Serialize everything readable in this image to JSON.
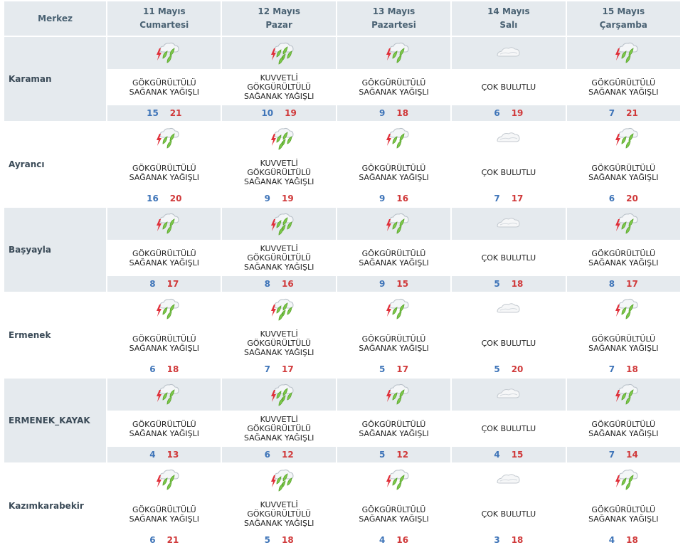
{
  "header": {
    "center_label": "Merkez",
    "days": [
      {
        "date": "11 Mayıs",
        "weekday": "Cumartesi"
      },
      {
        "date": "12 Mayıs",
        "weekday": "Pazar"
      },
      {
        "date": "13 Mayıs",
        "weekday": "Pazartesi"
      },
      {
        "date": "14 Mayıs",
        "weekday": "Salı"
      },
      {
        "date": "15 Mayıs",
        "weekday": "Çarşamba"
      }
    ]
  },
  "icons": {
    "storm": "thunderstorm-shower-icon",
    "heavy_storm": "heavy-thunderstorm-shower-icon",
    "cloudy": "overcast-cloud-icon"
  },
  "colors": {
    "min_temp": "#3e74b8",
    "max_temp": "#d0393a",
    "row_band": "#e5eaee",
    "header_text": "#4a6273"
  },
  "rows": [
    {
      "city": "Karaman",
      "forecasts": [
        {
          "icon": "storm",
          "desc1": "GÖKGÜRÜLTÜLÜ",
          "desc2": "SAĞANAK YAĞIŞLI",
          "desc3": "",
          "min": "15",
          "max": "21"
        },
        {
          "icon": "heavy_storm",
          "desc1": "KUVVETLİ",
          "desc2": "GÖKGÜRÜLTÜLÜ",
          "desc3": "SAĞANAK YAĞIŞLI",
          "min": "10",
          "max": "19"
        },
        {
          "icon": "storm",
          "desc1": "GÖKGÜRÜLTÜLÜ",
          "desc2": "SAĞANAK YAĞIŞLI",
          "desc3": "",
          "min": "9",
          "max": "18"
        },
        {
          "icon": "cloudy",
          "desc1": "ÇOK BULUTLU",
          "desc2": "",
          "desc3": "",
          "min": "6",
          "max": "19"
        },
        {
          "icon": "storm",
          "desc1": "GÖKGÜRÜLTÜLÜ",
          "desc2": "SAĞANAK YAĞIŞLI",
          "desc3": "",
          "min": "7",
          "max": "21"
        }
      ]
    },
    {
      "city": "Ayrancı",
      "forecasts": [
        {
          "icon": "storm",
          "desc1": "GÖKGÜRÜLTÜLÜ",
          "desc2": "SAĞANAK YAĞIŞLI",
          "desc3": "",
          "min": "16",
          "max": "20"
        },
        {
          "icon": "heavy_storm",
          "desc1": "KUVVETLİ",
          "desc2": "GÖKGÜRÜLTÜLÜ",
          "desc3": "SAĞANAK YAĞIŞLI",
          "min": "9",
          "max": "19"
        },
        {
          "icon": "storm",
          "desc1": "GÖKGÜRÜLTÜLÜ",
          "desc2": "SAĞANAK YAĞIŞLI",
          "desc3": "",
          "min": "9",
          "max": "16"
        },
        {
          "icon": "cloudy",
          "desc1": "ÇOK BULUTLU",
          "desc2": "",
          "desc3": "",
          "min": "7",
          "max": "17"
        },
        {
          "icon": "storm",
          "desc1": "GÖKGÜRÜLTÜLÜ",
          "desc2": "SAĞANAK YAĞIŞLI",
          "desc3": "",
          "min": "6",
          "max": "20"
        }
      ]
    },
    {
      "city": "Başyayla",
      "forecasts": [
        {
          "icon": "storm",
          "desc1": "GÖKGÜRÜLTÜLÜ",
          "desc2": "SAĞANAK YAĞIŞLI",
          "desc3": "",
          "min": "8",
          "max": "17"
        },
        {
          "icon": "heavy_storm",
          "desc1": "KUVVETLİ",
          "desc2": "GÖKGÜRÜLTÜLÜ",
          "desc3": "SAĞANAK YAĞIŞLI",
          "min": "8",
          "max": "16"
        },
        {
          "icon": "storm",
          "desc1": "GÖKGÜRÜLTÜLÜ",
          "desc2": "SAĞANAK YAĞIŞLI",
          "desc3": "",
          "min": "9",
          "max": "15"
        },
        {
          "icon": "cloudy",
          "desc1": "ÇOK BULUTLU",
          "desc2": "",
          "desc3": "",
          "min": "5",
          "max": "18"
        },
        {
          "icon": "storm",
          "desc1": "GÖKGÜRÜLTÜLÜ",
          "desc2": "SAĞANAK YAĞIŞLI",
          "desc3": "",
          "min": "8",
          "max": "17"
        }
      ]
    },
    {
      "city": "Ermenek",
      "forecasts": [
        {
          "icon": "storm",
          "desc1": "GÖKGÜRÜLTÜLÜ",
          "desc2": "SAĞANAK YAĞIŞLI",
          "desc3": "",
          "min": "6",
          "max": "18"
        },
        {
          "icon": "heavy_storm",
          "desc1": "KUVVETLİ",
          "desc2": "GÖKGÜRÜLTÜLÜ",
          "desc3": "SAĞANAK YAĞIŞLI",
          "min": "7",
          "max": "17"
        },
        {
          "icon": "storm",
          "desc1": "GÖKGÜRÜLTÜLÜ",
          "desc2": "SAĞANAK YAĞIŞLI",
          "desc3": "",
          "min": "5",
          "max": "17"
        },
        {
          "icon": "cloudy",
          "desc1": "ÇOK BULUTLU",
          "desc2": "",
          "desc3": "",
          "min": "5",
          "max": "20"
        },
        {
          "icon": "storm",
          "desc1": "GÖKGÜRÜLTÜLÜ",
          "desc2": "SAĞANAK YAĞIŞLI",
          "desc3": "",
          "min": "7",
          "max": "18"
        }
      ]
    },
    {
      "city": "ERMENEK_KAYAK",
      "forecasts": [
        {
          "icon": "storm",
          "desc1": "GÖKGÜRÜLTÜLÜ",
          "desc2": "SAĞANAK YAĞIŞLI",
          "desc3": "",
          "min": "4",
          "max": "13"
        },
        {
          "icon": "heavy_storm",
          "desc1": "KUVVETLİ",
          "desc2": "GÖKGÜRÜLTÜLÜ",
          "desc3": "SAĞANAK YAĞIŞLI",
          "min": "6",
          "max": "12"
        },
        {
          "icon": "storm",
          "desc1": "GÖKGÜRÜLTÜLÜ",
          "desc2": "SAĞANAK YAĞIŞLI",
          "desc3": "",
          "min": "5",
          "max": "12"
        },
        {
          "icon": "cloudy",
          "desc1": "ÇOK BULUTLU",
          "desc2": "",
          "desc3": "",
          "min": "4",
          "max": "15"
        },
        {
          "icon": "storm",
          "desc1": "GÖKGÜRÜLTÜLÜ",
          "desc2": "SAĞANAK YAĞIŞLI",
          "desc3": "",
          "min": "7",
          "max": "14"
        }
      ]
    },
    {
      "city": "Kazımkarabekir",
      "forecasts": [
        {
          "icon": "storm",
          "desc1": "GÖKGÜRÜLTÜLÜ",
          "desc2": "SAĞANAK YAĞIŞLI",
          "desc3": "",
          "min": "6",
          "max": "21"
        },
        {
          "icon": "heavy_storm",
          "desc1": "KUVVETLİ",
          "desc2": "GÖKGÜRÜLTÜLÜ",
          "desc3": "SAĞANAK YAĞIŞLI",
          "min": "5",
          "max": "18"
        },
        {
          "icon": "storm",
          "desc1": "GÖKGÜRÜLTÜLÜ",
          "desc2": "SAĞANAK YAĞIŞLI",
          "desc3": "",
          "min": "4",
          "max": "16"
        },
        {
          "icon": "cloudy",
          "desc1": "ÇOK BULUTLU",
          "desc2": "",
          "desc3": "",
          "min": "3",
          "max": "18"
        },
        {
          "icon": "storm",
          "desc1": "GÖKGÜRÜLTÜLÜ",
          "desc2": "SAĞANAK YAĞIŞLI",
          "desc3": "",
          "min": "4",
          "max": "18"
        }
      ]
    }
  ]
}
